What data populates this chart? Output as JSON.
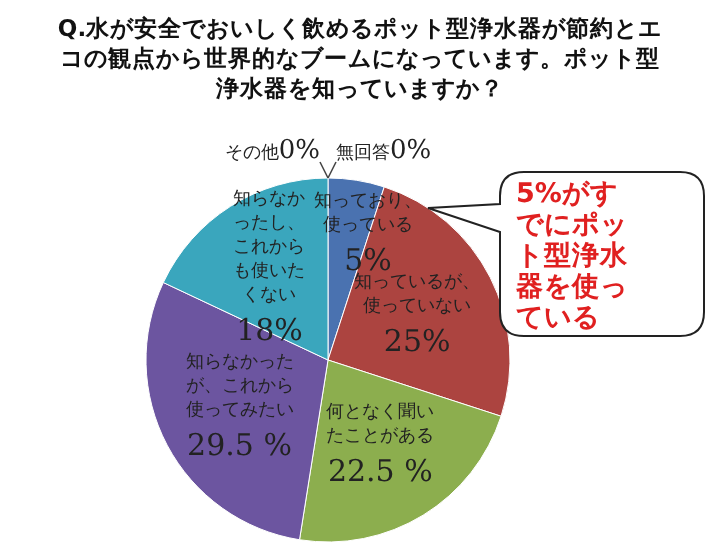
{
  "chart_data": {
    "type": "pie",
    "title": "Q.水が安全でおいしく飲めるポット型浄水器が節約とエコの観点から世界的なブームになっています。ポット型浄水器を知っていますか？",
    "categories": [
      "無回答",
      "知っており、使っている",
      "知っているが、使っていない",
      "何となく聞いたことがある",
      "知らなかったが、これから使ってみたい",
      "知らなかったし、これからも使いたくない",
      "その他"
    ],
    "values": [
      0,
      5,
      25,
      22.5,
      29.5,
      18,
      0
    ],
    "value_labels": [
      "0%",
      "5%",
      "25%",
      "22.5 %",
      "29.5 %",
      "18%",
      "0%"
    ],
    "colors": [
      "#3d66a8",
      "#4a72b0",
      "#ac4440",
      "#8cae4e",
      "#6c55a0",
      "#3aa6bd",
      "#3aa6bd"
    ],
    "annotations": [
      "5%がすでにポット型浄水器を使っている"
    ],
    "legend": false
  }
}
